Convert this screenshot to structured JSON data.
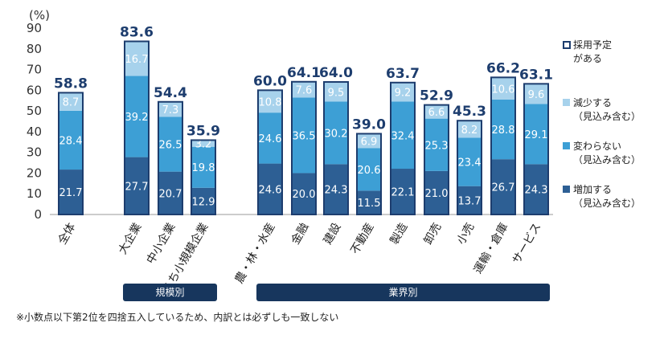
{
  "chart_data": {
    "type": "bar",
    "stacked": true,
    "ylabel": "(%)",
    "ylim": [
      0,
      90
    ],
    "yticks": [
      "0",
      "10",
      "20",
      "30",
      "40",
      "50",
      "60",
      "70",
      "80",
      "90"
    ],
    "categories": [
      "全体",
      "大企業",
      "中小企業",
      "うち小規模企業",
      "農・林・水産",
      "金融",
      "建設",
      "不動産",
      "製造",
      "卸売",
      "小売",
      "運輸・倉庫",
      "サービス"
    ],
    "series": [
      {
        "name": "増加する（見込み含む）",
        "color": "#2d5f94",
        "values": [
          21.7,
          27.7,
          20.7,
          12.9,
          24.6,
          20.0,
          24.3,
          11.5,
          22.1,
          21.0,
          13.7,
          26.7,
          24.3
        ]
      },
      {
        "name": "変わらない（見込み含む）",
        "color": "#3d9fd5",
        "values": [
          28.4,
          39.2,
          26.5,
          19.8,
          24.6,
          36.5,
          30.2,
          20.6,
          32.4,
          25.3,
          23.4,
          28.8,
          29.1
        ]
      },
      {
        "name": "減少する（見込み含む）",
        "color": "#a7d2ec",
        "values": [
          8.7,
          16.7,
          7.3,
          3.2,
          10.8,
          7.6,
          9.5,
          6.9,
          9.2,
          6.6,
          8.2,
          10.6,
          9.6
        ]
      }
    ],
    "totals": [
      58.8,
      83.6,
      54.4,
      35.9,
      60.0,
      64.1,
      64.0,
      39.0,
      63.7,
      52.9,
      45.3,
      66.2,
      63.1
    ],
    "total_label": "採用予定がある",
    "groups": [
      {
        "label": "規模別",
        "first": 1,
        "last": 3
      },
      {
        "label": "業界別",
        "first": 4,
        "last": 12
      }
    ],
    "legend": [
      {
        "lines": [
          "採用予定",
          "がある"
        ],
        "color": "#1d3d6e",
        "outline": true
      },
      {
        "lines": [
          "減少する",
          "（見込み含む）"
        ],
        "color": "#a7d2ec",
        "outline": false
      },
      {
        "lines": [
          "変わらない",
          "（見込み含む）"
        ],
        "color": "#3d9fd5",
        "outline": false
      },
      {
        "lines": [
          "増加する",
          "（見込み含む）"
        ],
        "color": "#2d5f94",
        "outline": false
      }
    ]
  },
  "footnote": "※小数点以下第2位を四捨五入しているため、内訳とは必ずしも一致しない"
}
